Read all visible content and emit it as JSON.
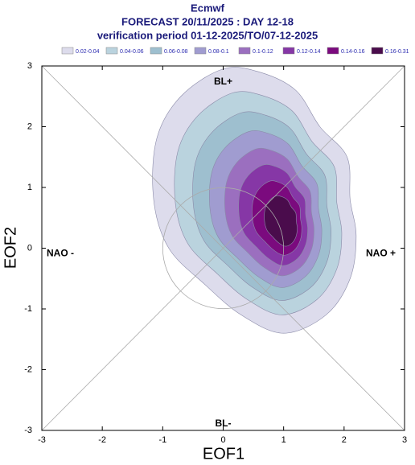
{
  "chart_data": {
    "type": "contour",
    "title": "Ecmwf",
    "subtitle": "FORECAST 20/11/2025 : DAY 12-18",
    "subtitle2": "verification period 01-12-2025/TO/07-12-2025",
    "xlabel": "EOF1",
    "ylabel": "EOF2",
    "xlim": [
      -3,
      3
    ],
    "ylim": [
      -3,
      3
    ],
    "xticks": [
      -3,
      -2,
      -1,
      0,
      1,
      2,
      3
    ],
    "yticks": [
      -3,
      -2,
      -1,
      0,
      1,
      2,
      3
    ],
    "annotations": [
      "BL+",
      "BL-",
      "NAO -",
      "NAO +"
    ],
    "series": [
      {
        "name": "0.02-0.04",
        "color": "#dddcec"
      },
      {
        "name": "0.04-0.06",
        "color": "#bad3de"
      },
      {
        "name": "0.06-0.08",
        "color": "#9ebfcf"
      },
      {
        "name": "0.08-0.1",
        "color": "#a09cd0"
      },
      {
        "name": "0.1-0.12",
        "color": "#9b6fbf"
      },
      {
        "name": "0.12-0.14",
        "color": "#8637a6"
      },
      {
        "name": "0.14-0.16",
        "color": "#7b0a7e"
      },
      {
        "name": "0.16-0.31",
        "color": "#4a0c4c"
      }
    ]
  }
}
